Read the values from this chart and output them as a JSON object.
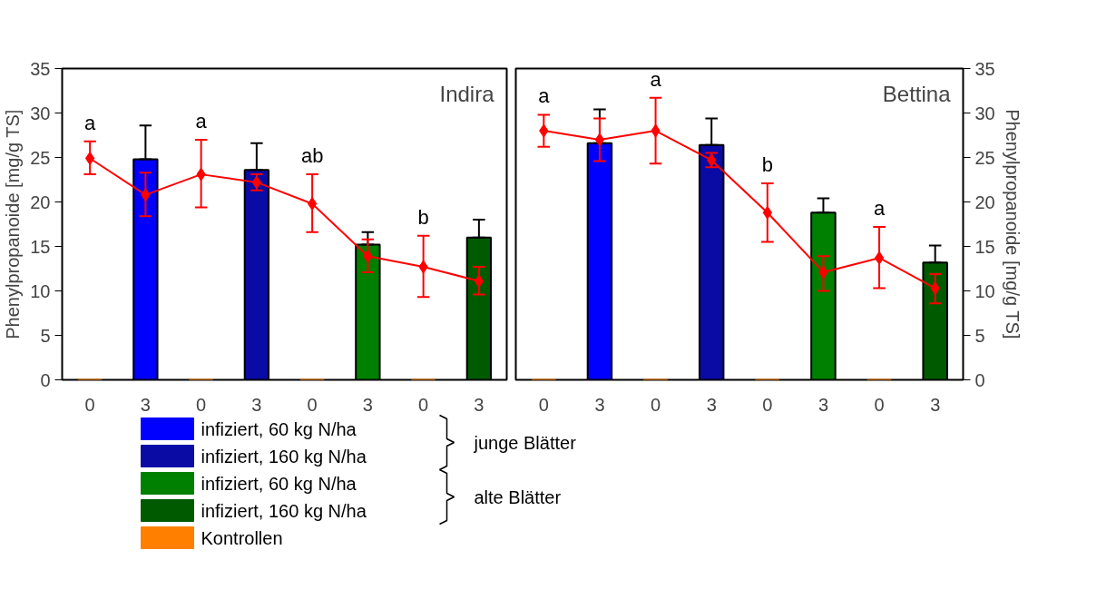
{
  "chart_data": [
    {
      "type": "bar",
      "title": "Indira",
      "ylabel": "Phenylpropanoide [mg/g TS]",
      "categories": [
        "0",
        "3",
        "0",
        "3",
        "0",
        "3",
        "0",
        "3"
      ],
      "ylim": [
        0,
        35
      ],
      "yticks": [
        0,
        5,
        10,
        15,
        20,
        25,
        30,
        35
      ],
      "grid": false,
      "legend": "bottom left",
      "series": [
        {
          "name": "infiziert, 60 kg N/ha",
          "color": "#0000ff",
          "values": [
            null,
            24.8,
            null,
            null,
            null,
            null,
            null,
            null
          ],
          "errors": [
            null,
            [
              24.8,
              28.6
            ],
            null,
            null,
            null,
            null,
            null,
            null
          ]
        },
        {
          "name": "infiziert, 160 kg N/ha",
          "color": "#0a0aa5",
          "values": [
            null,
            null,
            null,
            23.6,
            null,
            null,
            null,
            null
          ],
          "errors": [
            null,
            null,
            null,
            [
              23.6,
              26.6
            ],
            null,
            null,
            null,
            null
          ]
        },
        {
          "name": "infiziert, 60 kg N/ha",
          "color": "#008000",
          "values": [
            null,
            null,
            null,
            null,
            null,
            15.2,
            null,
            null
          ],
          "errors": [
            null,
            null,
            null,
            null,
            null,
            [
              15.2,
              16.6
            ],
            null,
            null
          ]
        },
        {
          "name": "infiziert, 160 kg N/ha",
          "color": "#005a00",
          "values": [
            null,
            null,
            null,
            null,
            null,
            null,
            null,
            16.0
          ],
          "errors": [
            null,
            null,
            null,
            null,
            null,
            null,
            null,
            [
              16.0,
              18.0
            ]
          ]
        },
        {
          "name": "Kontrollen",
          "color": "#ff8000",
          "values": [
            0,
            null,
            0,
            null,
            0,
            null,
            0,
            null
          ]
        },
        {
          "type": "line",
          "color": "#ff0000",
          "marker": "diamond",
          "values": [
            24.9,
            20.8,
            23.1,
            22.2,
            19.8,
            13.9,
            12.7,
            11.1
          ],
          "errors": [
            [
              23.1,
              26.8
            ],
            [
              18.4,
              23.3
            ],
            [
              19.4,
              27.0
            ],
            [
              21.3,
              23.1
            ],
            [
              16.6,
              23.1
            ],
            [
              12.1,
              15.8
            ],
            [
              9.3,
              16.2
            ],
            [
              9.6,
              12.7
            ]
          ]
        }
      ],
      "annotations": [
        "a",
        "a",
        "ab",
        "b",
        "junge Blätter",
        "alte Blätter"
      ]
    },
    {
      "type": "bar",
      "title": "Bettina",
      "ylabel": "Phenylpropanoide [mg/g TS]",
      "categories": [
        "0",
        "3",
        "0",
        "3",
        "0",
        "3",
        "0",
        "3"
      ],
      "ylim": [
        0,
        35
      ],
      "yticks": [
        0,
        5,
        10,
        15,
        20,
        25,
        30,
        35
      ],
      "grid": false,
      "series": [
        {
          "color": "#0000ff",
          "values": [
            null,
            26.6,
            null,
            null,
            null,
            null,
            null,
            null
          ],
          "errors": [
            null,
            [
              26.6,
              30.4
            ],
            null,
            null,
            null,
            null,
            null,
            null
          ]
        },
        {
          "color": "#0a0aa5",
          "values": [
            null,
            null,
            null,
            26.4,
            null,
            null,
            null,
            null
          ],
          "errors": [
            null,
            null,
            null,
            [
              26.4,
              29.4
            ],
            null,
            null,
            null,
            null
          ]
        },
        {
          "color": "#008000",
          "values": [
            null,
            null,
            null,
            null,
            null,
            18.8,
            null,
            null
          ],
          "errors": [
            null,
            null,
            null,
            null,
            null,
            [
              18.8,
              20.4
            ],
            null,
            null
          ]
        },
        {
          "color": "#005a00",
          "values": [
            null,
            null,
            null,
            null,
            null,
            null,
            null,
            13.2
          ],
          "errors": [
            null,
            null,
            null,
            null,
            null,
            null,
            null,
            [
              13.2,
              15.1
            ]
          ]
        },
        {
          "color": "#ff8000",
          "values": [
            0,
            null,
            0,
            null,
            0,
            null,
            0,
            null
          ]
        },
        {
          "type": "line",
          "color": "#ff0000",
          "marker": "diamond",
          "values": [
            28.0,
            27.0,
            28.0,
            24.7,
            18.8,
            12.1,
            13.7,
            10.3
          ],
          "errors": [
            [
              26.2,
              29.8
            ],
            [
              24.6,
              29.4
            ],
            [
              24.3,
              31.7
            ],
            [
              23.9,
              25.5
            ],
            [
              15.5,
              22.1
            ],
            [
              10.0,
              13.9
            ],
            [
              10.3,
              17.2
            ],
            [
              8.6,
              11.9
            ]
          ]
        }
      ],
      "annotations": [
        "a",
        "a",
        "b",
        "a"
      ]
    }
  ]
}
